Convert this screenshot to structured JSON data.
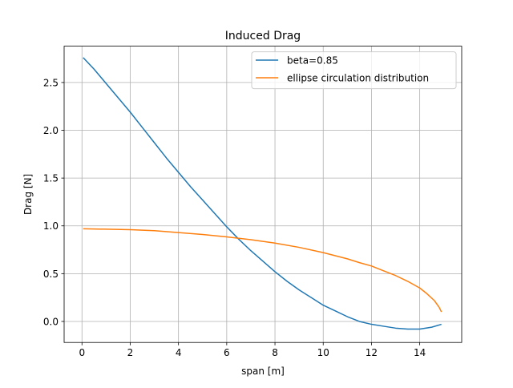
{
  "chart_data": {
    "type": "line",
    "title": "Induced Drag",
    "xlabel": "span [m]",
    "ylabel": "Drag [N]",
    "xlim": [
      -0.74,
      15.74
    ],
    "ylim": [
      -0.22,
      2.88
    ],
    "xticks": [
      0,
      2,
      4,
      6,
      8,
      10,
      12,
      14
    ],
    "yticks": [
      0.0,
      0.5,
      1.0,
      1.5,
      2.0,
      2.5
    ],
    "xtick_labels": [
      "0",
      "2",
      "4",
      "6",
      "8",
      "10",
      "12",
      "14"
    ],
    "ytick_labels": [
      "0.0",
      "0.5",
      "1.0",
      "1.5",
      "2.0",
      "2.5"
    ],
    "grid": true,
    "legend_position": "top-right",
    "series": [
      {
        "name": "beta=0.85",
        "color": "#1f77b4",
        "x": [
          0.05,
          0.5,
          1,
          1.5,
          2,
          2.5,
          3,
          3.5,
          4,
          4.5,
          5,
          5.5,
          6,
          6.5,
          7,
          7.5,
          8,
          8.5,
          9,
          9.5,
          10,
          10.5,
          11,
          11.5,
          12,
          12.5,
          13,
          13.5,
          14,
          14.5,
          14.9
        ],
        "y": [
          2.76,
          2.64,
          2.49,
          2.34,
          2.19,
          2.03,
          1.87,
          1.71,
          1.56,
          1.41,
          1.27,
          1.13,
          0.99,
          0.86,
          0.74,
          0.63,
          0.52,
          0.42,
          0.33,
          0.25,
          0.17,
          0.11,
          0.05,
          0.0,
          -0.03,
          -0.05,
          -0.07,
          -0.08,
          -0.08,
          -0.06,
          -0.03
        ]
      },
      {
        "name": "ellipse circulation distribution",
        "color": "#ff7f0e",
        "x": [
          0.05,
          1,
          2,
          3,
          4,
          5,
          6,
          7,
          8,
          9,
          10,
          11,
          11.5,
          12,
          12.5,
          13,
          13.5,
          14,
          14.3,
          14.6,
          14.8,
          14.9
        ],
        "y": [
          0.97,
          0.965,
          0.96,
          0.95,
          0.93,
          0.91,
          0.885,
          0.855,
          0.82,
          0.775,
          0.72,
          0.655,
          0.615,
          0.58,
          0.53,
          0.48,
          0.42,
          0.35,
          0.29,
          0.22,
          0.15,
          0.1
        ]
      }
    ]
  }
}
